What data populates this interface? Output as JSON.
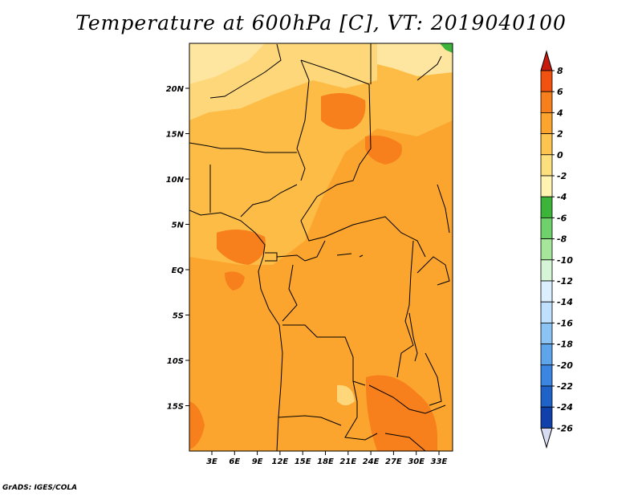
{
  "title": "Temperature at 600hPa [C], VT: 2019040100",
  "credit": "GrADS: IGES/COLA",
  "map": {
    "lat_labels": [
      "20N",
      "15N",
      "10N",
      "5N",
      "EQ",
      "5S",
      "10S",
      "15S"
    ],
    "lon_labels": [
      "3E",
      "6E",
      "9E",
      "12E",
      "15E",
      "18E",
      "21E",
      "24E",
      "27E",
      "30E",
      "33E"
    ]
  },
  "colorbar": {
    "levels": [
      "8",
      "6",
      "4",
      "2",
      "0",
      "-2",
      "-4",
      "-6",
      "-8",
      "-10",
      "-12",
      "-14",
      "-16",
      "-18",
      "-20",
      "-22",
      "-24",
      "-26"
    ],
    "colors": [
      "#e8220e",
      "#f2520f",
      "#f7801c",
      "#fba52e",
      "#fdc550",
      "#fde07e",
      "#fff4b0",
      "#3cb43a",
      "#6fd16a",
      "#a5e69a",
      "#d6f5d6",
      "#dcefff",
      "#bfe0ff",
      "#8cc3f5",
      "#5ea5ec",
      "#3a86e0",
      "#1f63c9",
      "#1040aa",
      "#0a1f78",
      "#06104e"
    ],
    "top_arrow_color": "#c61b0d",
    "bottom_arrow_color": "#d8dcf2"
  }
}
